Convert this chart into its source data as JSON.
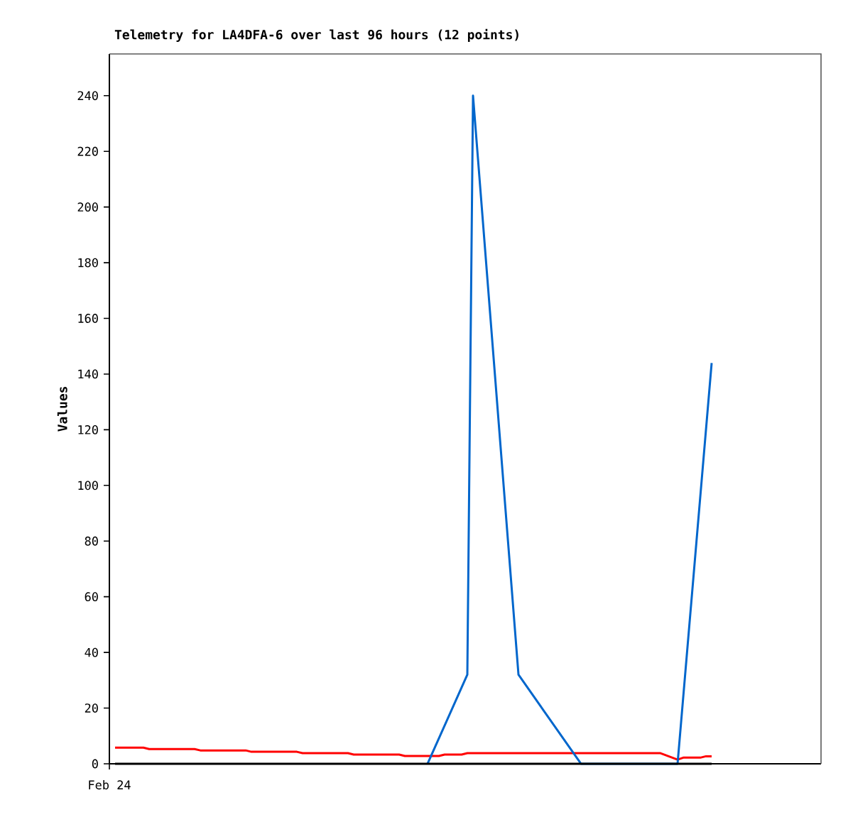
{
  "chart_data": {
    "type": "line",
    "title": "Telemetry for LA4DFA-6 over last 96 hours (12 points)",
    "ylabel": "Values",
    "annotations": [
      "Feb 24"
    ],
    "categories": [
      null,
      null,
      null,
      null,
      null,
      null,
      null,
      null,
      null,
      null,
      null,
      null,
      null,
      null,
      null,
      null,
      null,
      null,
      null,
      null,
      null,
      null,
      null,
      null,
      null,
      null,
      null,
      null,
      null,
      null,
      null,
      null,
      null,
      null,
      null,
      null,
      null,
      null,
      null,
      null,
      null,
      null,
      null,
      null,
      null,
      null,
      null,
      null,
      null,
      null,
      null,
      null,
      null,
      null,
      null,
      null,
      null,
      null,
      null,
      null,
      null,
      null,
      null,
      null,
      null,
      null,
      null,
      null,
      null,
      null,
      null,
      null,
      null,
      null,
      null,
      null,
      null,
      null,
      null,
      null,
      null,
      null,
      null,
      null,
      null,
      null,
      null,
      null,
      null,
      null,
      null,
      null,
      null,
      null,
      null,
      null,
      null,
      null,
      null,
      null,
      null,
      null,
      null,
      null,
      null,
      null,
      null,
      null,
      null,
      null,
      null,
      null,
      null,
      null,
      null,
      null,
      null,
      null,
      null,
      null,
      null,
      null,
      null,
      null,
      null,
      null
    ],
    "ylim": [
      0,
      255
    ],
    "yticks": [
      0,
      20,
      40,
      60,
      80,
      100,
      120,
      140,
      160,
      180,
      200,
      220,
      240
    ],
    "grid": false,
    "legend": false,
    "marker": "none",
    "line_style": "solid",
    "series": [
      {
        "color": "#ff0000",
        "values": [
          null,
          5.8,
          null,
          null,
          null,
          null,
          5.8,
          5.3,
          null,
          null,
          null,
          null,
          null,
          null,
          null,
          5.3,
          4.8,
          null,
          null,
          null,
          null,
          null,
          null,
          null,
          4.8,
          4.3,
          null,
          null,
          null,
          null,
          null,
          null,
          null,
          4.3,
          3.8,
          null,
          null,
          null,
          null,
          null,
          null,
          null,
          3.8,
          3.3,
          null,
          null,
          null,
          null,
          null,
          null,
          null,
          3.3,
          2.8,
          null,
          null,
          null,
          null,
          null,
          2.8,
          3.3,
          null,
          null,
          3.3,
          3.8,
          null,
          null,
          null,
          null,
          null,
          null,
          null,
          null,
          null,
          null,
          null,
          null,
          null,
          null,
          null,
          null,
          null,
          null,
          null,
          null,
          null,
          null,
          null,
          null,
          null,
          null,
          null,
          null,
          null,
          null,
          null,
          null,
          null,
          3.8,
          null,
          null,
          1.5,
          2.2,
          null,
          null,
          2.2,
          2.7,
          2.7,
          null,
          null,
          null,
          null,
          null,
          null,
          null,
          null,
          null,
          null,
          null,
          null,
          null,
          null,
          null,
          null,
          null,
          null,
          null
        ]
      },
      {
        "color": "#0066cc",
        "values": [
          null,
          null,
          null,
          null,
          null,
          null,
          null,
          null,
          null,
          null,
          null,
          null,
          null,
          null,
          null,
          null,
          null,
          null,
          null,
          null,
          null,
          null,
          null,
          null,
          null,
          null,
          null,
          null,
          null,
          null,
          null,
          null,
          null,
          null,
          null,
          null,
          null,
          null,
          null,
          null,
          null,
          null,
          null,
          null,
          null,
          null,
          null,
          null,
          null,
          null,
          null,
          null,
          null,
          null,
          null,
          null,
          0,
          null,
          null,
          null,
          null,
          null,
          null,
          32,
          240,
          null,
          null,
          null,
          null,
          null,
          null,
          null,
          32,
          null,
          null,
          null,
          null,
          null,
          null,
          null,
          null,
          null,
          null,
          0,
          null,
          null,
          null,
          null,
          null,
          null,
          null,
          null,
          null,
          null,
          null,
          null,
          null,
          null,
          null,
          null,
          0,
          null,
          null,
          null,
          null,
          null,
          144,
          null,
          null,
          null,
          null,
          null,
          null,
          null,
          null,
          null,
          null,
          null,
          null,
          null,
          null,
          null,
          null,
          null,
          null,
          null
        ]
      },
      {
        "color": "#000000",
        "values": [
          null,
          0,
          null,
          null,
          null,
          null,
          null,
          null,
          null,
          null,
          null,
          null,
          null,
          null,
          null,
          null,
          null,
          null,
          null,
          null,
          null,
          null,
          null,
          null,
          null,
          null,
          null,
          null,
          null,
          null,
          null,
          null,
          null,
          null,
          null,
          null,
          null,
          null,
          null,
          null,
          null,
          null,
          null,
          null,
          null,
          null,
          null,
          null,
          null,
          null,
          null,
          null,
          null,
          null,
          null,
          null,
          null,
          null,
          null,
          null,
          null,
          null,
          null,
          null,
          null,
          null,
          null,
          null,
          null,
          null,
          null,
          null,
          null,
          null,
          null,
          null,
          null,
          null,
          null,
          null,
          null,
          null,
          null,
          null,
          null,
          null,
          null,
          null,
          null,
          null,
          null,
          null,
          null,
          null,
          null,
          null,
          null,
          null,
          null,
          null,
          null,
          null,
          null,
          null,
          null,
          null,
          0,
          null,
          null,
          null,
          null,
          null,
          null,
          null,
          null,
          null,
          null,
          null,
          null,
          null,
          null,
          null,
          null,
          null,
          null,
          null
        ]
      }
    ]
  }
}
